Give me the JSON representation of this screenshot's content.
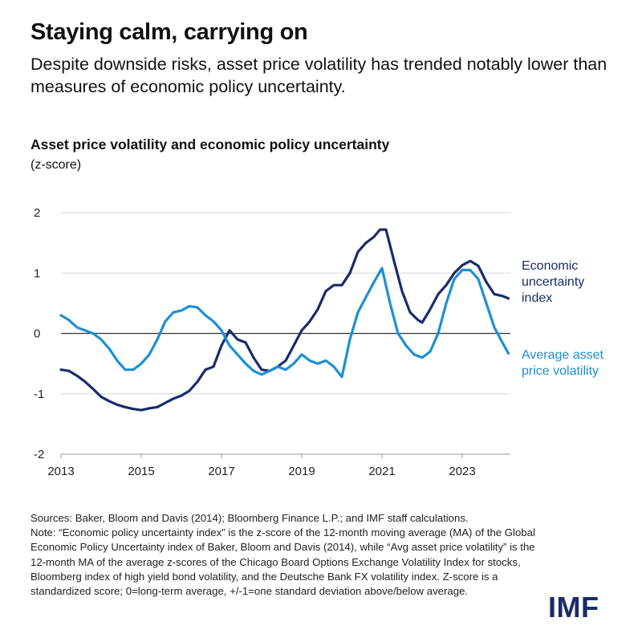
{
  "header": {
    "title": "Staying calm, carrying on",
    "subtitle": "Despite downside risks, asset price volatility has trended notably lower than measures of economic policy uncertainty."
  },
  "chart_data": {
    "type": "line",
    "title": "Asset price volatility and economic policy uncertainty",
    "ylabel": "(z-score)",
    "xlabel": "",
    "xlim": [
      2013,
      2024.2
    ],
    "ylim": [
      -2,
      2
    ],
    "yticks": [
      "2",
      "1",
      "0",
      "-1",
      "-2"
    ],
    "ytick_values": [
      2,
      1,
      0,
      -1,
      -2
    ],
    "xticks": [
      "2013",
      "2015",
      "2017",
      "2019",
      "2021",
      "2023"
    ],
    "xtick_values": [
      2013,
      2015,
      2017,
      2019,
      2021,
      2023
    ],
    "grid": true,
    "legend": "inline-right",
    "series": [
      {
        "name": "Economic uncertainty index",
        "label_lines": [
          "Economic",
          "uncertainty",
          "index"
        ],
        "color": "#1a2c6b",
        "x": [
          2013,
          2013.2,
          2013.4,
          2013.6,
          2013.8,
          2014,
          2014.2,
          2014.4,
          2014.6,
          2014.8,
          2015,
          2015.2,
          2015.4,
          2015.6,
          2015.8,
          2016,
          2016.2,
          2016.4,
          2016.6,
          2016.8,
          2017,
          2017.2,
          2017.4,
          2017.6,
          2017.8,
          2018,
          2018.2,
          2018.4,
          2018.6,
          2018.8,
          2019,
          2019.2,
          2019.4,
          2019.6,
          2019.8,
          2020,
          2020.2,
          2020.4,
          2020.6,
          2020.8,
          2020.95,
          2021.1,
          2021.3,
          2021.5,
          2021.7,
          2021.9,
          2022,
          2022.2,
          2022.4,
          2022.6,
          2022.8,
          2023,
          2023.2,
          2023.4,
          2023.6,
          2023.8,
          2024,
          2024.15
        ],
        "y": [
          -0.6,
          -0.62,
          -0.7,
          -0.8,
          -0.92,
          -1.05,
          -1.12,
          -1.18,
          -1.22,
          -1.25,
          -1.27,
          -1.24,
          -1.22,
          -1.15,
          -1.08,
          -1.03,
          -0.95,
          -0.8,
          -0.6,
          -0.55,
          -0.2,
          0.05,
          -0.1,
          -0.15,
          -0.4,
          -0.6,
          -0.62,
          -0.55,
          -0.45,
          -0.2,
          0.05,
          0.2,
          0.4,
          0.7,
          0.8,
          0.8,
          1.0,
          1.35,
          1.5,
          1.6,
          1.72,
          1.72,
          1.2,
          0.7,
          0.35,
          0.22,
          0.18,
          0.4,
          0.65,
          0.8,
          1.0,
          1.13,
          1.2,
          1.12,
          0.85,
          0.65,
          0.62,
          0.58
        ]
      },
      {
        "name": "Average asset price volatility",
        "label_lines": [
          "Average asset",
          "price volatility"
        ],
        "color": "#1d8fd3",
        "x": [
          2013,
          2013.2,
          2013.4,
          2013.6,
          2013.8,
          2014,
          2014.2,
          2014.4,
          2014.6,
          2014.8,
          2015,
          2015.2,
          2015.4,
          2015.6,
          2015.8,
          2016,
          2016.2,
          2016.4,
          2016.6,
          2016.8,
          2017,
          2017.2,
          2017.4,
          2017.6,
          2017.8,
          2018,
          2018.2,
          2018.4,
          2018.6,
          2018.8,
          2019,
          2019.2,
          2019.4,
          2019.6,
          2019.8,
          2020,
          2020.2,
          2020.4,
          2020.6,
          2020.8,
          2021,
          2021.2,
          2021.4,
          2021.6,
          2021.8,
          2022,
          2022.2,
          2022.4,
          2022.6,
          2022.8,
          2023,
          2023.2,
          2023.4,
          2023.6,
          2023.8,
          2024,
          2024.15
        ],
        "y": [
          0.3,
          0.22,
          0.1,
          0.05,
          0.0,
          -0.1,
          -0.25,
          -0.45,
          -0.6,
          -0.6,
          -0.5,
          -0.35,
          -0.1,
          0.2,
          0.35,
          0.38,
          0.45,
          0.43,
          0.3,
          0.2,
          0.05,
          -0.2,
          -0.35,
          -0.5,
          -0.62,
          -0.68,
          -0.62,
          -0.55,
          -0.6,
          -0.5,
          -0.35,
          -0.45,
          -0.5,
          -0.45,
          -0.55,
          -0.72,
          -0.1,
          0.35,
          0.6,
          0.85,
          1.08,
          0.5,
          0.0,
          -0.2,
          -0.35,
          -0.4,
          -0.3,
          0.0,
          0.5,
          0.9,
          1.05,
          1.05,
          0.9,
          0.5,
          0.1,
          -0.15,
          -0.33
        ]
      }
    ]
  },
  "notes": {
    "sources": "Sources: Baker, Bloom and Davis (2014); Bloomberg Finance L.P.; and IMF staff calculations.",
    "note": "Note: “Economic policy uncertainty index” is the z-score of the 12-month moving average (MA) of the Global Economic Policy Uncertainty index of Baker, Bloom and Davis (2014), while “Avg asset price volatility” is the 12-month MA of the average z-scores of the Chicago Board Options Exchange Volatility Index for stocks, Bloomberg index of high yield bond volatility, and the Deutsche Bank FX volatility index. Z-score is a standardized score; 0=long-term average, +/-1=one standard deviation above/below average."
  },
  "logo": {
    "text": "IMF"
  }
}
